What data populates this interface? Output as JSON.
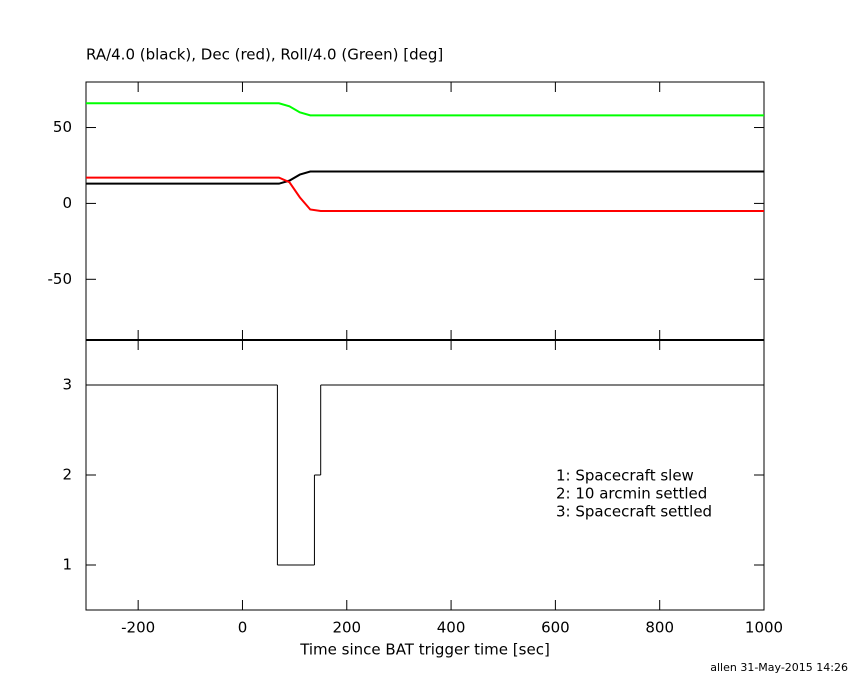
{
  "chart_data": [
    {
      "type": "line",
      "title": "RA/4.0 (black), Dec (red), Roll/4.0 (Green) [deg]",
      "x": [
        -300,
        70,
        90,
        110,
        130,
        150,
        1000
      ],
      "series": [
        {
          "color": "#00ff00",
          "values": [
            66,
            66,
            64,
            60,
            58,
            58,
            58
          ]
        },
        {
          "color": "#000000",
          "values": [
            13,
            13,
            15,
            19,
            21,
            21,
            21
          ]
        },
        {
          "color": "#ff0000",
          "values": [
            17,
            17,
            14,
            4,
            -4,
            -5,
            -5
          ]
        }
      ],
      "xlim": [
        -300,
        1000
      ],
      "ylim": [
        -90,
        80
      ],
      "yticks": [
        -50,
        0,
        50
      ]
    },
    {
      "type": "step",
      "x_label": "Time since BAT trigger time [sec]",
      "x": [
        -300,
        67,
        138,
        150
      ],
      "values": [
        3,
        1,
        2,
        3
      ],
      "color": "#000000",
      "xlim": [
        -300,
        1000
      ],
      "xticks": [
        -200,
        0,
        200,
        400,
        600,
        800,
        1000
      ],
      "ylim": [
        0.5,
        3.5
      ],
      "yticks": [
        1,
        2,
        3
      ],
      "annotations": [
        "1: Spacecraft slew",
        "2: 10 arcmin settled",
        "3: Spacecraft settled"
      ]
    }
  ],
  "footer": "allen 31-May-2015 14:26"
}
